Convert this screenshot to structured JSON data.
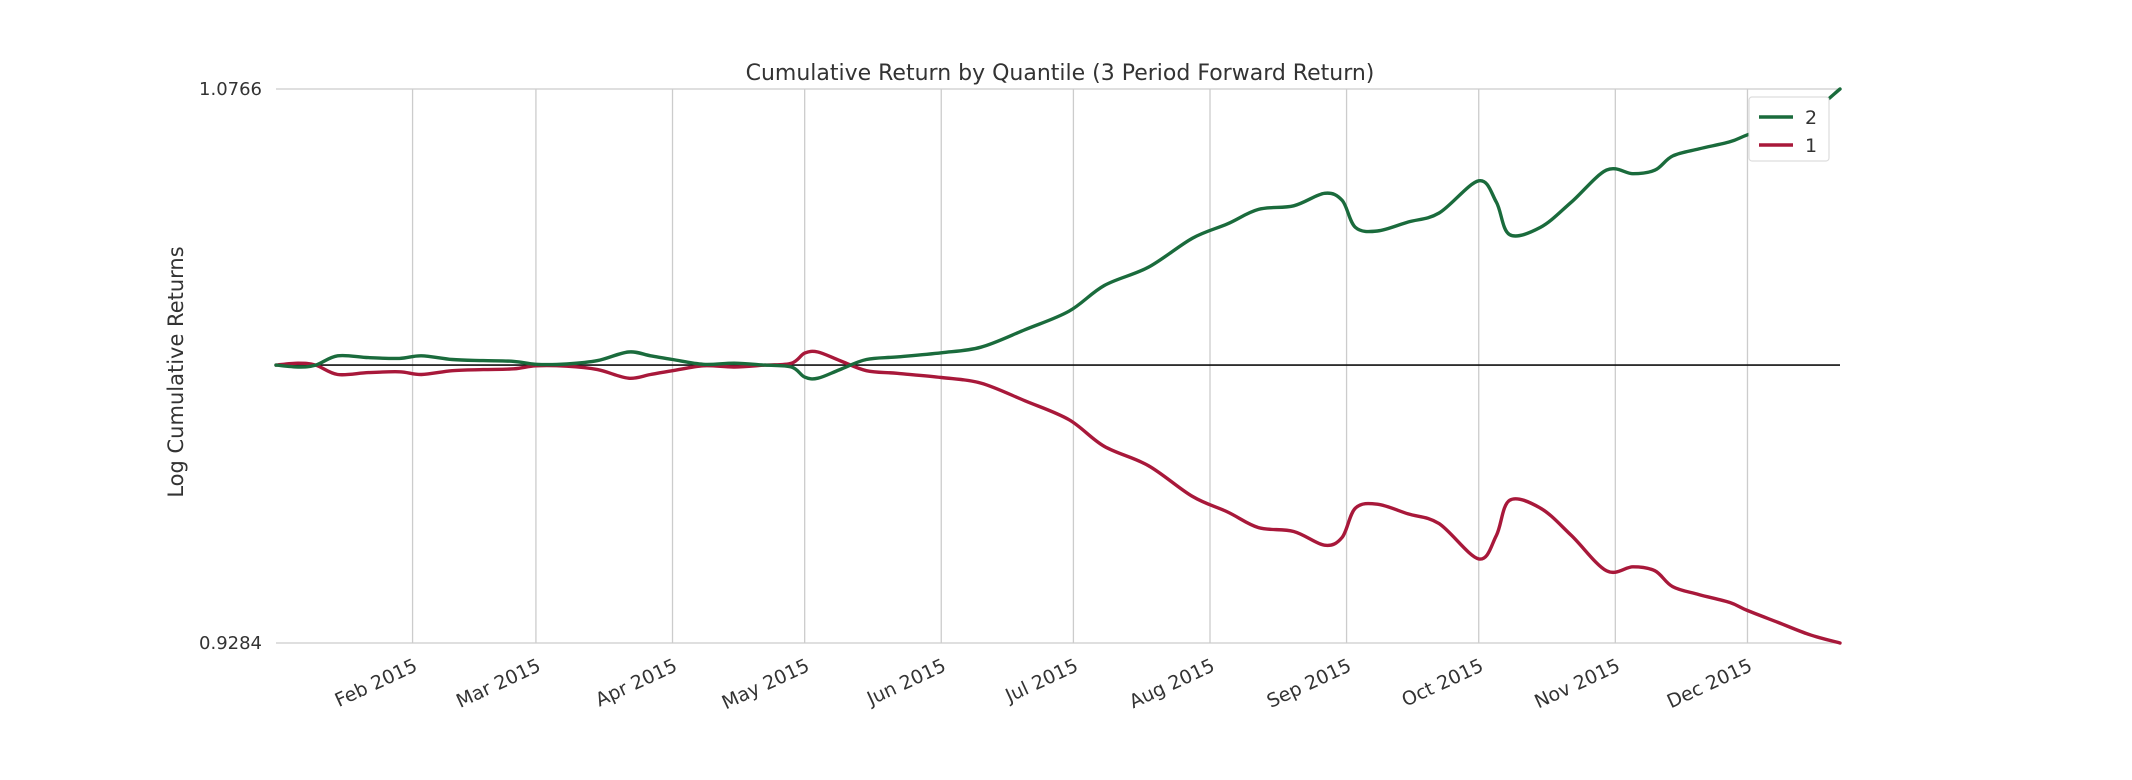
{
  "chart_data": {
    "type": "line",
    "title": "Cumulative Return by Quantile (3 Period Forward Return)",
    "ylabel": "Log Cumulative Returns",
    "xlabel": "",
    "y_ticks": [
      "1.0766",
      "0.9284"
    ],
    "ylim": [
      0.9284,
      1.0766
    ],
    "y_scale": "log",
    "baseline": 1.0,
    "x_tick_labels": [
      "Feb 2015",
      "Mar 2015",
      "Apr 2015",
      "May 2015",
      "Jun 2015",
      "Jul 2015",
      "Aug 2015",
      "Sep 2015",
      "Oct 2015",
      "Nov 2015",
      "Dec 2015"
    ],
    "x_ticks": [
      "2015-02-01",
      "2015-03-01",
      "2015-04-01",
      "2015-05-01",
      "2015-06-01",
      "2015-07-01",
      "2015-08-01",
      "2015-09-01",
      "2015-10-01",
      "2015-11-01",
      "2015-12-01"
    ],
    "xlim": [
      "2015-01-01",
      "2015-12-22"
    ],
    "grid": "vertical",
    "legend_position": "top-right",
    "series": [
      {
        "name": "2",
        "color": "#1a6b3c",
        "points": [
          [
            "2015-01-01",
            1.0
          ],
          [
            "2015-01-06",
            0.9995
          ],
          [
            "2015-01-10",
            1.0
          ],
          [
            "2015-01-15",
            1.0025
          ],
          [
            "2015-01-22",
            1.002
          ],
          [
            "2015-01-29",
            1.0018
          ],
          [
            "2015-02-03",
            1.0025
          ],
          [
            "2015-02-10",
            1.0015
          ],
          [
            "2015-02-17",
            1.0012
          ],
          [
            "2015-02-24",
            1.001
          ],
          [
            "2015-03-01",
            1.0002
          ],
          [
            "2015-03-08",
            1.0003
          ],
          [
            "2015-03-15",
            1.0012
          ],
          [
            "2015-03-22",
            1.0035
          ],
          [
            "2015-03-27",
            1.0025
          ],
          [
            "2015-04-01",
            1.0015
          ],
          [
            "2015-04-08",
            1.0002
          ],
          [
            "2015-04-15",
            1.0005
          ],
          [
            "2015-04-22",
            1.0
          ],
          [
            "2015-04-28",
            0.9995
          ],
          [
            "2015-05-01",
            0.9968
          ],
          [
            "2015-05-04",
            0.9965
          ],
          [
            "2015-05-09",
            0.9988
          ],
          [
            "2015-05-15",
            1.0015
          ],
          [
            "2015-05-22",
            1.0022
          ],
          [
            "2015-06-01",
            1.0033
          ],
          [
            "2015-06-10",
            1.0048
          ],
          [
            "2015-06-20",
            1.0095
          ],
          [
            "2015-06-30",
            1.0145
          ],
          [
            "2015-07-08",
            1.0215
          ],
          [
            "2015-07-18",
            1.0265
          ],
          [
            "2015-07-28",
            1.0345
          ],
          [
            "2015-08-05",
            1.0385
          ],
          [
            "2015-08-12",
            1.0425
          ],
          [
            "2015-08-20",
            1.0435
          ],
          [
            "2015-08-27",
            1.047
          ],
          [
            "2015-08-31",
            1.045
          ],
          [
            "2015-09-03",
            1.0375
          ],
          [
            "2015-09-08",
            1.0365
          ],
          [
            "2015-09-15",
            1.039
          ],
          [
            "2015-09-22",
            1.0415
          ],
          [
            "2015-10-01",
            1.0505
          ],
          [
            "2015-10-05",
            1.0445
          ],
          [
            "2015-10-08",
            1.0355
          ],
          [
            "2015-10-15",
            1.0375
          ],
          [
            "2015-10-22",
            1.0445
          ],
          [
            "2015-10-30",
            1.0535
          ],
          [
            "2015-11-05",
            1.0525
          ],
          [
            "2015-11-10",
            1.0535
          ],
          [
            "2015-11-14",
            1.0575
          ],
          [
            "2015-11-20",
            1.0595
          ],
          [
            "2015-11-27",
            1.0615
          ],
          [
            "2015-12-01",
            1.0635
          ],
          [
            "2015-12-08",
            1.0665
          ],
          [
            "2015-12-15",
            1.0695
          ],
          [
            "2015-12-22",
            1.0766
          ]
        ]
      },
      {
        "name": "1",
        "color": "#a8183a",
        "points": [
          [
            "2015-01-01",
            1.0
          ],
          [
            "2015-01-06",
            1.0005
          ],
          [
            "2015-01-10",
            1.0
          ],
          [
            "2015-01-15",
            0.9975
          ],
          [
            "2015-01-22",
            0.998
          ],
          [
            "2015-01-29",
            0.9982
          ],
          [
            "2015-02-03",
            0.9975
          ],
          [
            "2015-02-10",
            0.9985
          ],
          [
            "2015-02-17",
            0.9988
          ],
          [
            "2015-02-24",
            0.999
          ],
          [
            "2015-03-01",
            0.9998
          ],
          [
            "2015-03-08",
            0.9997
          ],
          [
            "2015-03-15",
            0.9988
          ],
          [
            "2015-03-22",
            0.9965
          ],
          [
            "2015-03-27",
            0.9975
          ],
          [
            "2015-04-01",
            0.9985
          ],
          [
            "2015-04-08",
            0.9998
          ],
          [
            "2015-04-15",
            0.9995
          ],
          [
            "2015-04-22",
            1.0
          ],
          [
            "2015-04-28",
            1.0005
          ],
          [
            "2015-05-01",
            1.0032
          ],
          [
            "2015-05-04",
            1.0035
          ],
          [
            "2015-05-09",
            1.0012
          ],
          [
            "2015-05-15",
            0.9985
          ],
          [
            "2015-05-22",
            0.9978
          ],
          [
            "2015-06-01",
            0.9967
          ],
          [
            "2015-06-10",
            0.9952
          ],
          [
            "2015-06-20",
            0.9905
          ],
          [
            "2015-06-30",
            0.9855
          ],
          [
            "2015-07-08",
            0.9785
          ],
          [
            "2015-07-18",
            0.9735
          ],
          [
            "2015-07-28",
            0.9655
          ],
          [
            "2015-08-05",
            0.9615
          ],
          [
            "2015-08-12",
            0.9575
          ],
          [
            "2015-08-20",
            0.9565
          ],
          [
            "2015-08-27",
            0.953
          ],
          [
            "2015-08-31",
            0.955
          ],
          [
            "2015-09-03",
            0.9625
          ],
          [
            "2015-09-08",
            0.9635
          ],
          [
            "2015-09-15",
            0.961
          ],
          [
            "2015-09-22",
            0.9585
          ],
          [
            "2015-10-01",
            0.9495
          ],
          [
            "2015-10-05",
            0.9555
          ],
          [
            "2015-10-08",
            0.9645
          ],
          [
            "2015-10-15",
            0.9625
          ],
          [
            "2015-10-22",
            0.9555
          ],
          [
            "2015-10-30",
            0.9465
          ],
          [
            "2015-11-05",
            0.9475
          ],
          [
            "2015-11-10",
            0.9465
          ],
          [
            "2015-11-14",
            0.9425
          ],
          [
            "2015-11-20",
            0.9405
          ],
          [
            "2015-11-27",
            0.9385
          ],
          [
            "2015-12-01",
            0.9365
          ],
          [
            "2015-12-08",
            0.9335
          ],
          [
            "2015-12-15",
            0.9305
          ],
          [
            "2015-12-22",
            0.9284
          ]
        ]
      }
    ]
  }
}
